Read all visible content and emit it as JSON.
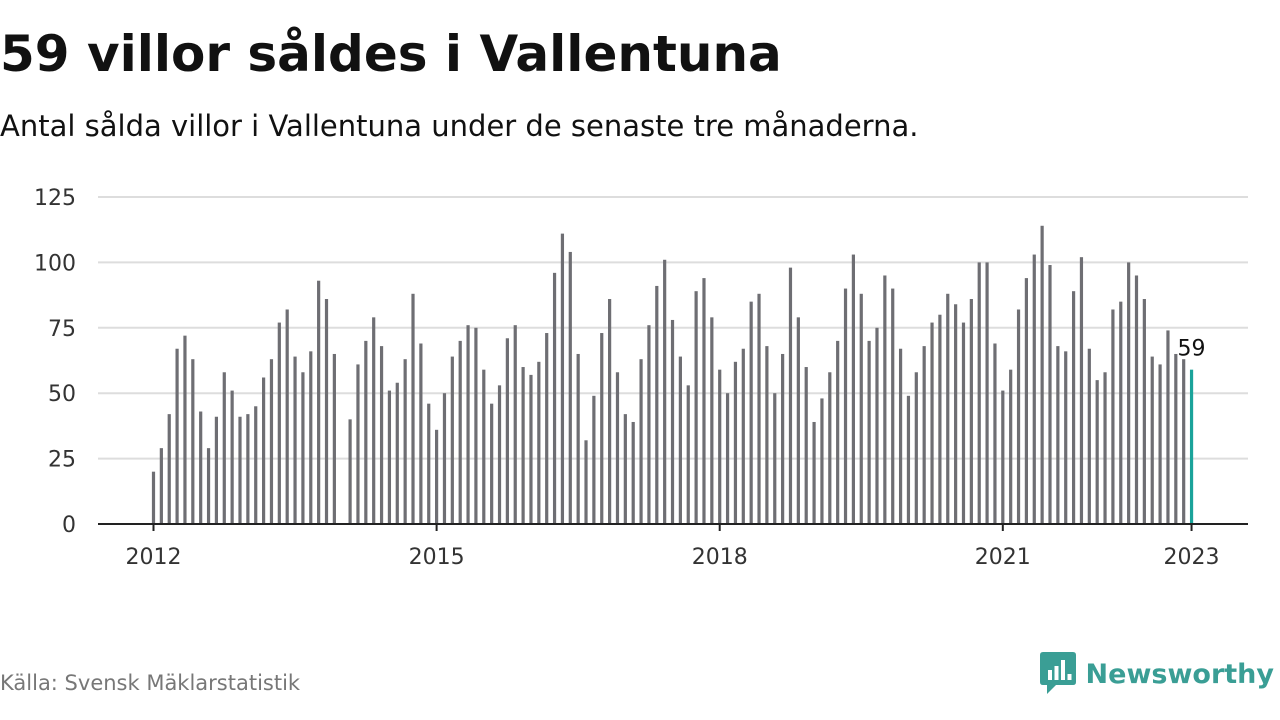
{
  "title": "59 villor såldes i Vallentuna",
  "subtitle": "Antal sålda villor i Vallentuna under de senaste tre månaderna.",
  "source": "Källa: Svensk Mäklarstatistik",
  "brand": {
    "name": "Newsworthy",
    "icon": "newsworthy-logo-icon",
    "color": "#3a9e95"
  },
  "colors": {
    "bar": "#6e6e73",
    "highlight": "#1aa39a",
    "grid": "#dddddd",
    "axis": "#222222"
  },
  "chart_data": {
    "type": "bar",
    "title": "59 villor såldes i Vallentuna",
    "xlabel": "",
    "ylabel": "",
    "ylim": [
      0,
      125
    ],
    "yticks": [
      0,
      25,
      50,
      75,
      100,
      125
    ],
    "xticks": [
      "2012",
      "2015",
      "2018",
      "2021",
      "2023"
    ],
    "grid": "horizontal",
    "legend": "none",
    "highlight_label": "59",
    "series": [
      {
        "values": [
          {
            "date": "2012-01",
            "value": 20
          },
          {
            "date": "2012-02",
            "value": 29
          },
          {
            "date": "2012-03",
            "value": 42
          },
          {
            "date": "2012-04",
            "value": 67
          },
          {
            "date": "2012-05",
            "value": 72
          },
          {
            "date": "2012-06",
            "value": 63
          },
          {
            "date": "2012-07",
            "value": 43
          },
          {
            "date": "2012-08",
            "value": 29
          },
          {
            "date": "2012-09",
            "value": 41
          },
          {
            "date": "2012-10",
            "value": 58
          },
          {
            "date": "2012-11",
            "value": 51
          },
          {
            "date": "2012-12",
            "value": 41
          },
          {
            "date": "2013-01",
            "value": 42
          },
          {
            "date": "2013-02",
            "value": 45
          },
          {
            "date": "2013-03",
            "value": 56
          },
          {
            "date": "2013-04",
            "value": 63
          },
          {
            "date": "2013-05",
            "value": 77
          },
          {
            "date": "2013-06",
            "value": 82
          },
          {
            "date": "2013-07",
            "value": 64
          },
          {
            "date": "2013-08",
            "value": 58
          },
          {
            "date": "2013-09",
            "value": 66
          },
          {
            "date": "2013-10",
            "value": 93
          },
          {
            "date": "2013-11",
            "value": 86
          },
          {
            "date": "2013-12",
            "value": 65
          },
          {
            "date": "2014-01",
            "value": null
          },
          {
            "date": "2014-02",
            "value": 40
          },
          {
            "date": "2014-03",
            "value": 61
          },
          {
            "date": "2014-04",
            "value": 70
          },
          {
            "date": "2014-05",
            "value": 79
          },
          {
            "date": "2014-06",
            "value": 68
          },
          {
            "date": "2014-07",
            "value": 51
          },
          {
            "date": "2014-08",
            "value": 54
          },
          {
            "date": "2014-09",
            "value": 63
          },
          {
            "date": "2014-10",
            "value": 88
          },
          {
            "date": "2014-11",
            "value": 69
          },
          {
            "date": "2014-12",
            "value": 46
          },
          {
            "date": "2015-01",
            "value": 36
          },
          {
            "date": "2015-02",
            "value": 50
          },
          {
            "date": "2015-03",
            "value": 64
          },
          {
            "date": "2015-04",
            "value": 70
          },
          {
            "date": "2015-05",
            "value": 76
          },
          {
            "date": "2015-06",
            "value": 75
          },
          {
            "date": "2015-07",
            "value": 59
          },
          {
            "date": "2015-08",
            "value": 46
          },
          {
            "date": "2015-09",
            "value": 53
          },
          {
            "date": "2015-10",
            "value": 71
          },
          {
            "date": "2015-11",
            "value": 76
          },
          {
            "date": "2015-12",
            "value": 60
          },
          {
            "date": "2016-01",
            "value": 57
          },
          {
            "date": "2016-02",
            "value": 62
          },
          {
            "date": "2016-03",
            "value": 73
          },
          {
            "date": "2016-04",
            "value": 96
          },
          {
            "date": "2016-05",
            "value": 111
          },
          {
            "date": "2016-06",
            "value": 104
          },
          {
            "date": "2016-07",
            "value": 65
          },
          {
            "date": "2016-08",
            "value": 32
          },
          {
            "date": "2016-09",
            "value": 49
          },
          {
            "date": "2016-10",
            "value": 73
          },
          {
            "date": "2016-11",
            "value": 86
          },
          {
            "date": "2016-12",
            "value": 58
          },
          {
            "date": "2017-01",
            "value": 42
          },
          {
            "date": "2017-02",
            "value": 39
          },
          {
            "date": "2017-03",
            "value": 63
          },
          {
            "date": "2017-04",
            "value": 76
          },
          {
            "date": "2017-05",
            "value": 91
          },
          {
            "date": "2017-06",
            "value": 101
          },
          {
            "date": "2017-07",
            "value": 78
          },
          {
            "date": "2017-08",
            "value": 64
          },
          {
            "date": "2017-09",
            "value": 53
          },
          {
            "date": "2017-10",
            "value": 89
          },
          {
            "date": "2017-11",
            "value": 94
          },
          {
            "date": "2017-12",
            "value": 79
          },
          {
            "date": "2018-01",
            "value": 59
          },
          {
            "date": "2018-02",
            "value": 50
          },
          {
            "date": "2018-03",
            "value": 62
          },
          {
            "date": "2018-04",
            "value": 67
          },
          {
            "date": "2018-05",
            "value": 85
          },
          {
            "date": "2018-06",
            "value": 88
          },
          {
            "date": "2018-07",
            "value": 68
          },
          {
            "date": "2018-08",
            "value": 50
          },
          {
            "date": "2018-09",
            "value": 65
          },
          {
            "date": "2018-10",
            "value": 98
          },
          {
            "date": "2018-11",
            "value": 79
          },
          {
            "date": "2018-12",
            "value": 60
          },
          {
            "date": "2019-01",
            "value": 39
          },
          {
            "date": "2019-02",
            "value": 48
          },
          {
            "date": "2019-03",
            "value": 58
          },
          {
            "date": "2019-04",
            "value": 70
          },
          {
            "date": "2019-05",
            "value": 90
          },
          {
            "date": "2019-06",
            "value": 103
          },
          {
            "date": "2019-07",
            "value": 88
          },
          {
            "date": "2019-08",
            "value": 70
          },
          {
            "date": "2019-09",
            "value": 75
          },
          {
            "date": "2019-10",
            "value": 95
          },
          {
            "date": "2019-11",
            "value": 90
          },
          {
            "date": "2019-12",
            "value": 67
          },
          {
            "date": "2020-01",
            "value": 49
          },
          {
            "date": "2020-02",
            "value": 58
          },
          {
            "date": "2020-03",
            "value": 68
          },
          {
            "date": "2020-04",
            "value": 77
          },
          {
            "date": "2020-05",
            "value": 80
          },
          {
            "date": "2020-06",
            "value": 88
          },
          {
            "date": "2020-07",
            "value": 84
          },
          {
            "date": "2020-08",
            "value": 77
          },
          {
            "date": "2020-09",
            "value": 86
          },
          {
            "date": "2020-10",
            "value": 100
          },
          {
            "date": "2020-11",
            "value": 100
          },
          {
            "date": "2020-12",
            "value": 69
          },
          {
            "date": "2021-01",
            "value": 51
          },
          {
            "date": "2021-02",
            "value": 59
          },
          {
            "date": "2021-03",
            "value": 82
          },
          {
            "date": "2021-04",
            "value": 94
          },
          {
            "date": "2021-05",
            "value": 103
          },
          {
            "date": "2021-06",
            "value": 114
          },
          {
            "date": "2021-07",
            "value": 99
          },
          {
            "date": "2021-08",
            "value": 68
          },
          {
            "date": "2021-09",
            "value": 66
          },
          {
            "date": "2021-10",
            "value": 89
          },
          {
            "date": "2021-11",
            "value": 102
          },
          {
            "date": "2021-12",
            "value": 67
          },
          {
            "date": "2022-01",
            "value": 55
          },
          {
            "date": "2022-02",
            "value": 58
          },
          {
            "date": "2022-03",
            "value": 82
          },
          {
            "date": "2022-04",
            "value": 85
          },
          {
            "date": "2022-05",
            "value": 100
          },
          {
            "date": "2022-06",
            "value": 95
          },
          {
            "date": "2022-07",
            "value": 86
          },
          {
            "date": "2022-08",
            "value": 64
          },
          {
            "date": "2022-09",
            "value": 61
          },
          {
            "date": "2022-10",
            "value": 74
          },
          {
            "date": "2022-11",
            "value": 65
          },
          {
            "date": "2022-12",
            "value": 63
          },
          {
            "date": "2023-01",
            "value": 59
          }
        ]
      }
    ]
  }
}
